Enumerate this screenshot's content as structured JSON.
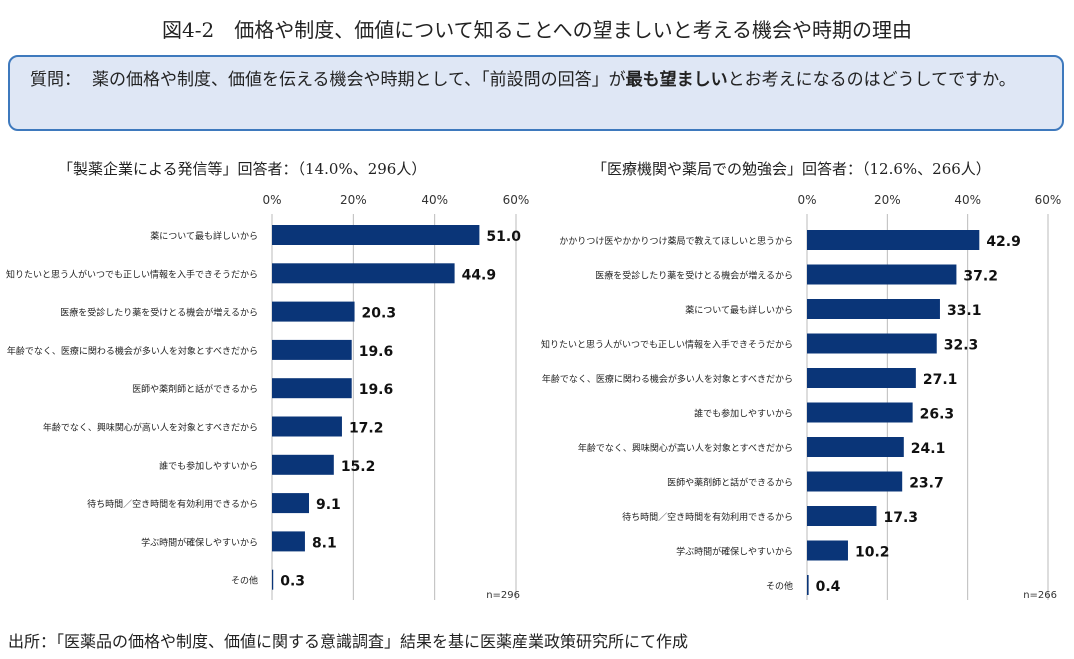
{
  "title": "図4-2　価格や制度、価値について知ることへの望ましいと考える機会や時期の理由",
  "question": {
    "label": "質問：",
    "text_before": "薬の価格や制度、価値を伝える機会や時期として、「前設問の回答」が",
    "text_bold": "最も望ましい",
    "text_after": "とお考えになるのはどうしてですか。"
  },
  "source": "出所：「医薬品の価格や制度、価値に関する意識調査」結果を基に医薬産業政策研究所にて作成",
  "colors": {
    "bar": "#0a3578",
    "grid": "#bbbbbb",
    "box_bg": "#dfe7f5",
    "box_border": "#3e79bd"
  },
  "chart_data": [
    {
      "type": "bar",
      "orientation": "horizontal",
      "title": "「製薬企業による発信等」回答者：（14.0%、296人）",
      "xlim": [
        0,
        60
      ],
      "ticks": [
        "0%",
        "20%",
        "40%",
        "60%"
      ],
      "tick_values": [
        0,
        20,
        40,
        60
      ],
      "grid": true,
      "note": "n=296",
      "categories": [
        "薬について最も詳しいから",
        "知りたいと思う人がいつでも正しい情報を入手できそうだから",
        "医療を受診したり薬を受けとる機会が増えるから",
        "年齢でなく、医療に関わる機会が多い人を対象とすべきだから",
        "医師や薬剤師と話ができるから",
        "年齢でなく、興味関心が高い人を対象とすべきだから",
        "誰でも参加しやすいから",
        "待ち時間／空き時間を有効利用できるから",
        "学ぶ時間が確保しやすいから",
        "その他"
      ],
      "values": [
        51.0,
        44.9,
        20.3,
        19.6,
        19.6,
        17.2,
        15.2,
        9.1,
        8.1,
        0.3
      ]
    },
    {
      "type": "bar",
      "orientation": "horizontal",
      "title": "「医療機関や薬局での勉強会」回答者：（12.6%、266人）",
      "xlim": [
        0,
        60
      ],
      "ticks": [
        "0%",
        "20%",
        "40%",
        "60%"
      ],
      "tick_values": [
        0,
        20,
        40,
        60
      ],
      "grid": true,
      "note": "n=266",
      "categories": [
        "かかりつけ医やかかりつけ薬局で教えてほしいと思うから",
        "医療を受診したり薬を受けとる機会が増えるから",
        "薬について最も詳しいから",
        "知りたいと思う人がいつでも正しい情報を入手できそうだから",
        "年齢でなく、医療に関わる機会が多い人を対象とすべきだから",
        "誰でも参加しやすいから",
        "年齢でなく、興味関心が高い人を対象とすべきだから",
        "医師や薬剤師と話ができるから",
        "待ち時間／空き時間を有効利用できるから",
        "学ぶ時間が確保しやすいから",
        "その他"
      ],
      "values": [
        42.9,
        37.2,
        33.1,
        32.3,
        27.1,
        26.3,
        24.1,
        23.7,
        17.3,
        10.2,
        0.4
      ]
    }
  ]
}
